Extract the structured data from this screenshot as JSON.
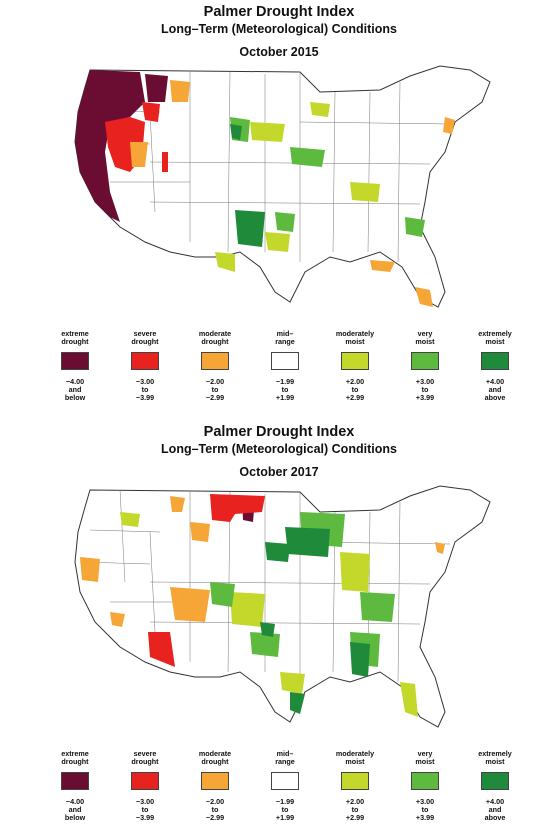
{
  "maps": [
    {
      "title": "Palmer Drought Index",
      "subtitle": "Long–Term (Meteorological) Conditions",
      "date": "October 2015"
    },
    {
      "title": "Palmer Drought Index",
      "subtitle": "Long–Term (Meteorological) Conditions",
      "date": "October 2017"
    }
  ],
  "legend": [
    {
      "label": "extreme\ndrought",
      "color": "#6b0c33",
      "range": "−4.00\nand\nbelow"
    },
    {
      "label": "severe\ndrought",
      "color": "#e8231f",
      "range": "−3.00\nto\n−3.99"
    },
    {
      "label": "moderate\ndrought",
      "color": "#f5a637",
      "range": "−2.00\nto\n−2.99"
    },
    {
      "label": "mid–\nrange",
      "color": "#ffffff",
      "range": "−1.99\nto\n+1.99"
    },
    {
      "label": "moderately\nmoist",
      "color": "#c3d82a",
      "range": "+2.00\nto\n+2.99"
    },
    {
      "label": "very\nmoist",
      "color": "#5dba3f",
      "range": "+3.00\nto\n+3.99"
    },
    {
      "label": "extremely\nmoist",
      "color": "#1f8a3a",
      "range": "+4.00\nand\nabove"
    }
  ]
}
